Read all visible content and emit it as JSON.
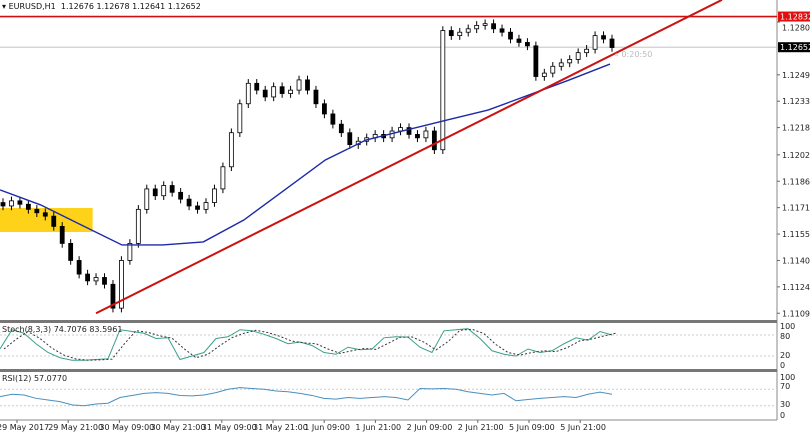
{
  "header": {
    "symbol": "EURUSD,H1",
    "ohlc": "1.12676 1.12678 1.12641 1.12652"
  },
  "colors": {
    "candle": "#000000",
    "up_fill": "#ffffff",
    "ma": "#1c2aa8",
    "trendline": "#cc1111",
    "zone": "#ffd21a",
    "stoch_main": "#3aa08a",
    "rsi": "#4a8fbf"
  },
  "chart_data": {
    "type": "candlestick",
    "price_ticks": [
      "1.12800",
      "1.12490",
      "1.12335",
      "1.12180",
      "1.12020",
      "1.11865",
      "1.11710",
      "1.11555",
      "1.11400",
      "1.11245",
      "1.11090"
    ],
    "price_tick_values": [
      1.128,
      1.1249,
      1.12335,
      1.1218,
      1.1202,
      1.11865,
      1.1171,
      1.11555,
      1.114,
      1.11245,
      1.1109
    ],
    "time_labels": [
      "29 May 2017",
      "29 May 21:00",
      "30 May 09:00",
      "30 May 21:00",
      "31 May 09:00",
      "31 May 21:00",
      "1 Jun 09:00",
      "1 Jun 21:00",
      "2 Jun 09:00",
      "2 Jun 21:00",
      "5 Jun 09:00",
      "5 Jun 21:00"
    ],
    "closes": [
      1.1172,
      1.1175,
      1.1173,
      1.117,
      1.1168,
      1.1166,
      1.116,
      1.115,
      1.114,
      1.1132,
      1.1128,
      1.113,
      1.1126,
      1.1112,
      1.114,
      1.115,
      1.117,
      1.1182,
      1.1178,
      1.1184,
      1.118,
      1.1176,
      1.1172,
      1.117,
      1.1174,
      1.1182,
      1.1195,
      1.1215,
      1.1232,
      1.1244,
      1.124,
      1.1236,
      1.1242,
      1.1238,
      1.124,
      1.1246,
      1.124,
      1.1232,
      1.1226,
      1.122,
      1.1215,
      1.1208,
      1.121,
      1.1212,
      1.1214,
      1.1212,
      1.1216,
      1.1218,
      1.1214,
      1.1212,
      1.1216,
      1.1205,
      1.1275,
      1.1272,
      1.1274,
      1.1276,
      1.1278,
      1.1279,
      1.1276,
      1.1274,
      1.127,
      1.1268,
      1.1266,
      1.1248,
      1.125,
      1.1254,
      1.1256,
      1.1258,
      1.1262,
      1.1264,
      1.1272,
      1.127,
      1.1265
    ],
    "moving_average": [
      1.11814,
      1.11726,
      1.11608,
      1.11491,
      1.11491,
      1.11509,
      1.11638,
      1.11814,
      1.1199,
      1.12107,
      1.12166,
      1.12225,
      1.12283,
      1.12371,
      1.1246,
      1.12553
    ],
    "resistance_price": 1.12832,
    "resistance_label": "1.12832",
    "current_price_label": "1.12652",
    "current_price": 1.12652,
    "countdown": "« 0:20:50",
    "trendline": {
      "from": {
        "bar": 11,
        "price": 1.1109
      },
      "to": {
        "bar": 85,
        "price": 1.1293
      }
    },
    "zone": {
      "bar_from": 0,
      "bar_to": 10.6,
      "price_high": 1.11708,
      "price_low": 1.11567
    },
    "stoch": {
      "label": "Stoch(8,3,3) 74.7076 83.5961",
      "levels": [
        "100",
        "80",
        "20",
        "0"
      ],
      "main": [
        40,
        95,
        85,
        55,
        30,
        15,
        8,
        8,
        10,
        12,
        95,
        90,
        85,
        70,
        72,
        10,
        20,
        30,
        70,
        75,
        95,
        92,
        82,
        70,
        55,
        60,
        50,
        30,
        25,
        45,
        38,
        40,
        72,
        75,
        74,
        45,
        30,
        92,
        95,
        98,
        70,
        35,
        25,
        20,
        40,
        30,
        35,
        55,
        72,
        65,
        90,
        80
      ]
    },
    "rsi": {
      "label": "RSI(12) 57.0770",
      "levels": [
        "100",
        "70",
        "30",
        "0"
      ],
      "values": [
        52,
        58,
        56,
        48,
        44,
        40,
        32,
        30,
        34,
        36,
        50,
        55,
        60,
        62,
        60,
        55,
        54,
        56,
        62,
        70,
        74,
        72,
        70,
        66,
        64,
        60,
        55,
        48,
        46,
        50,
        48,
        50,
        52,
        50,
        44,
        72,
        71,
        72,
        70,
        64,
        60,
        56,
        60,
        42,
        45,
        48,
        50,
        52,
        50,
        58,
        63,
        58
      ]
    }
  }
}
